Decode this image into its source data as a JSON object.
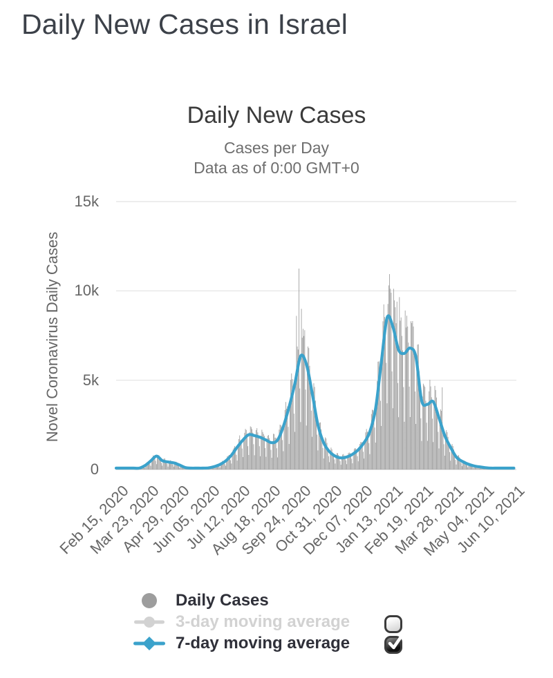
{
  "page": {
    "title": "Daily New Cases in Israel"
  },
  "chart_data": {
    "type": "bar",
    "title": "Daily New Cases",
    "subtitle": "Cases per Day",
    "data_as_of": "Data as of 0:00 GMT+0",
    "xlabel": "",
    "ylabel": "Novel Coronavirus Daily Cases",
    "ylim": [
      0,
      15000
    ],
    "grid": true,
    "legend_position": "bottom",
    "x_axis_label_rotation": -45,
    "yticks": [
      {
        "value": 0,
        "label": "0"
      },
      {
        "value": 5000,
        "label": "5k"
      },
      {
        "value": 10000,
        "label": "10k"
      },
      {
        "value": 15000,
        "label": "15k"
      }
    ],
    "x_tick_labels": [
      "Feb 15, 2020",
      "Mar 23, 2020",
      "Apr 29, 2020",
      "Jun 05, 2020",
      "Jul 12, 2020",
      "Aug 18, 2020",
      "Sep 24, 2020",
      "Oct 31, 2020",
      "Dec 07, 2020",
      "Jan 13, 2021",
      "Feb 19, 2021",
      "Mar 28, 2021",
      "May 04, 2021",
      "Jun 10, 2021"
    ],
    "x_start": "Feb 15, 2020",
    "x_tick_interval_days": 37,
    "axis_total_days": 486,
    "series": [
      {
        "name": "Daily Cases",
        "type": "bar",
        "color": "#9d9d9d",
        "visible": true,
        "weekday_pattern": [
          0.42,
          1.02,
          1.25,
          1.28,
          1.18,
          1.05,
          0.72
        ],
        "noise_amp": 0.12,
        "peak_daily_cases": 11250,
        "spike_days": {
          "219": 8600,
          "222": 11250,
          "225": 9000,
          "229": 7800,
          "330": 9270,
          "334": 9900,
          "337": 10120,
          "341": 9400,
          "344": 9650,
          "351": 8900,
          "358": 8300,
          "396": 4600
        }
      },
      {
        "name": "3-day moving average",
        "type": "line",
        "color": "#d2d2d2",
        "visible": false
      },
      {
        "name": "7-day moving average",
        "type": "line",
        "color": "#3ba2cb",
        "visible": true,
        "sample_interval_days": 7,
        "values": [
          1,
          2,
          5,
          15,
          70,
          220,
          480,
          750,
          500,
          420,
          370,
          250,
          110,
          45,
          25,
          35,
          90,
          160,
          280,
          480,
          800,
          1250,
          1650,
          1950,
          1900,
          1800,
          1650,
          1500,
          1650,
          2400,
          3500,
          4800,
          6350,
          5900,
          4300,
          2500,
          1500,
          1000,
          750,
          650,
          700,
          850,
          1100,
          1500,
          2100,
          3400,
          6000,
          8500,
          8000,
          6700,
          6500,
          6800,
          6300,
          3850,
          3650,
          3800,
          2900,
          1900,
          1250,
          700,
          460,
          310,
          210,
          150,
          105,
          75,
          55,
          35,
          22,
          18
        ]
      }
    ]
  },
  "legend": {
    "three_day_checked": false,
    "seven_day_checked": true
  }
}
